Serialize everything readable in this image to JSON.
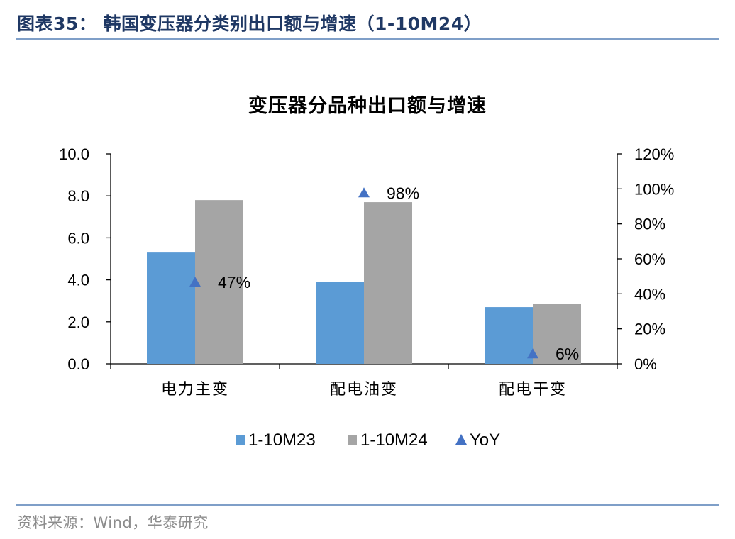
{
  "header": {
    "figure_title": "图表35：  韩国变压器分类别出口额与增速（1-10M24）"
  },
  "footer": {
    "source": "资料来源：Wind，华泰研究"
  },
  "colors": {
    "series_2023": "#5b9bd5",
    "series_2024": "#a5a5a5",
    "yoy_marker": "#4472c4",
    "rule": "#7f9fc8",
    "title": "#1f3864"
  },
  "chart_data": {
    "type": "bar",
    "title": "变压器分品种出口额与增速",
    "categories": [
      "电力主变",
      "配电油变",
      "配电干变"
    ],
    "series": [
      {
        "name": "1-10M23",
        "type": "bar",
        "axis": "left",
        "values": [
          5.3,
          3.9,
          2.7
        ]
      },
      {
        "name": "1-10M24",
        "type": "bar",
        "axis": "left",
        "values": [
          7.8,
          7.7,
          2.85
        ]
      },
      {
        "name": "YoY",
        "type": "scatter",
        "marker": "triangle",
        "axis": "right",
        "values": [
          47,
          98,
          6
        ],
        "labels": [
          "47%",
          "98%",
          "6%"
        ]
      }
    ],
    "y_left": {
      "min": 0,
      "max": 10,
      "step": 2,
      "tick_labels": [
        "0.0",
        "2.0",
        "4.0",
        "6.0",
        "8.0",
        "10.0"
      ]
    },
    "y_right": {
      "min": 0,
      "max": 120,
      "step": 20,
      "tick_labels": [
        "0%",
        "20%",
        "40%",
        "60%",
        "80%",
        "100%",
        "120%"
      ]
    },
    "grid": false,
    "legend_position": "bottom"
  }
}
